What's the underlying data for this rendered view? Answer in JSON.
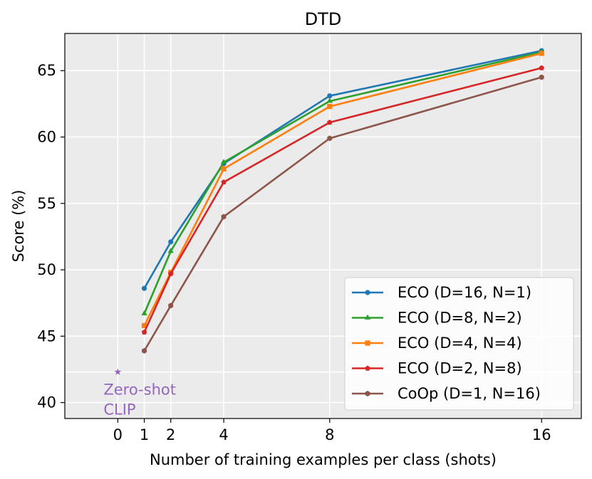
{
  "chart_data": {
    "type": "line",
    "title": "DTD",
    "xlabel": "Number of training examples per class (shots)",
    "ylabel": "Score (%)",
    "xlim": [
      -2,
      17.5
    ],
    "ylim": [
      38.8,
      67.8
    ],
    "xticks": [
      0,
      1,
      2,
      4,
      8,
      16
    ],
    "yticks": [
      40,
      45,
      50,
      55,
      60,
      65
    ],
    "background": "#ebebeb",
    "grid": true,
    "legend_position": "lower-right",
    "x": [
      1,
      2,
      4,
      8,
      16
    ],
    "series": [
      {
        "name": "ECO (D=16, N=1)",
        "color": "#1f77b4",
        "marker": "circle",
        "values": [
          48.6,
          52.1,
          58.0,
          63.1,
          66.5
        ]
      },
      {
        "name": "ECO (D=8, N=2)",
        "color": "#2ca02c",
        "marker": "triangle",
        "values": [
          46.7,
          51.4,
          58.1,
          62.7,
          66.4
        ]
      },
      {
        "name": "ECO (D=4, N=4)",
        "color": "#ff7f0e",
        "marker": "square",
        "values": [
          45.8,
          49.8,
          57.6,
          62.3,
          66.3
        ]
      },
      {
        "name": "ECO (D=2, N=8)",
        "color": "#d62728",
        "marker": "pentagon",
        "values": [
          45.3,
          49.7,
          56.6,
          61.1,
          65.2
        ]
      },
      {
        "name": "CoOp (D=1, N=16)",
        "color": "#8c564b",
        "marker": "hexagon",
        "values": [
          43.9,
          47.3,
          54.0,
          59.9,
          64.5
        ]
      }
    ],
    "zero_shot": {
      "x": 0,
      "y": 42.3,
      "label_line1": "Zero-shot",
      "label_line2": "CLIP",
      "color": "#9467bd"
    }
  }
}
